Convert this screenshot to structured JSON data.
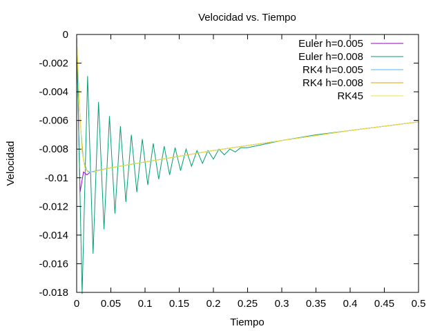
{
  "chart_data": {
    "type": "line",
    "title": "Velocidad vs. Tiempo",
    "xlabel": "Tiempo",
    "ylabel": "Velocidad",
    "xlim": [
      0,
      0.5
    ],
    "ylim": [
      -0.018,
      0
    ],
    "xticks": [
      0,
      0.05,
      0.1,
      0.15,
      0.2,
      0.25,
      0.3,
      0.35,
      0.4,
      0.45,
      0.5
    ],
    "xtick_labels": [
      "0",
      "0.05",
      "0.1",
      "0.15",
      "0.2",
      "0.25",
      "0.3",
      "0.35",
      "0.4",
      "0.45",
      "0.5"
    ],
    "yticks": [
      0,
      -0.002,
      -0.004,
      -0.006,
      -0.008,
      -0.01,
      -0.012,
      -0.014,
      -0.016,
      -0.018
    ],
    "ytick_labels": [
      "0",
      "-0.002",
      "-0.004",
      "-0.006",
      "-0.008",
      "-0.01",
      "-0.012",
      "-0.014",
      "-0.016",
      "-0.018"
    ],
    "grid": false,
    "legend_position": "top-right",
    "series": [
      {
        "name": "Euler h=0.005",
        "color": "#9400d3",
        "x": [
          0,
          0.005,
          0.01,
          0.015,
          0.02,
          0.025,
          0.03,
          0.05,
          0.1,
          0.15,
          0.2,
          0.3,
          0.4,
          0.5
        ],
        "y": [
          -0.0002,
          -0.011,
          -0.0096,
          -0.0098,
          -0.0096,
          -0.0096,
          -0.0095,
          -0.0093,
          -0.0089,
          -0.0085,
          -0.0081,
          -0.0074,
          -0.0067,
          -0.0061
        ]
      },
      {
        "name": "Euler h=0.008",
        "color": "#009e73",
        "x": [
          0,
          0.008,
          0.016,
          0.024,
          0.032,
          0.04,
          0.048,
          0.056,
          0.064,
          0.072,
          0.08,
          0.088,
          0.096,
          0.104,
          0.112,
          0.12,
          0.128,
          0.136,
          0.144,
          0.152,
          0.16,
          0.168,
          0.176,
          0.184,
          0.192,
          0.2,
          0.208,
          0.216,
          0.224,
          0.232,
          0.24,
          0.25,
          0.3,
          0.35,
          0.4,
          0.45,
          0.5
        ],
        "y": [
          -0.0002,
          -0.0181,
          -0.0029,
          -0.0153,
          -0.0047,
          -0.0136,
          -0.0057,
          -0.0125,
          -0.0064,
          -0.0117,
          -0.007,
          -0.011,
          -0.0073,
          -0.0105,
          -0.0076,
          -0.0101,
          -0.0078,
          -0.0098,
          -0.0079,
          -0.0095,
          -0.008,
          -0.0092,
          -0.0081,
          -0.009,
          -0.0081,
          -0.0087,
          -0.008,
          -0.0084,
          -0.008,
          -0.0082,
          -0.0079,
          -0.0079,
          -0.0074,
          -0.007,
          -0.0067,
          -0.0064,
          -0.0061
        ]
      },
      {
        "name": "RK4 h=0.005",
        "color": "#56b4e9",
        "x": [
          0,
          0.005,
          0.01,
          0.015,
          0.02,
          0.03,
          0.05,
          0.1,
          0.15,
          0.2,
          0.3,
          0.4,
          0.5
        ],
        "y": [
          -0.0002,
          -0.006,
          -0.0088,
          -0.0095,
          -0.0096,
          -0.0095,
          -0.0093,
          -0.0089,
          -0.0085,
          -0.0081,
          -0.0074,
          -0.0067,
          -0.0061
        ]
      },
      {
        "name": "RK4 h=0.008",
        "color": "#e69f00",
        "x": [
          0,
          0.004,
          0.008,
          0.012,
          0.016,
          0.024,
          0.032,
          0.05,
          0.1,
          0.15,
          0.2,
          0.3,
          0.4,
          0.5
        ],
        "y": [
          -0.0002,
          -0.005,
          -0.0082,
          -0.0093,
          -0.0096,
          -0.0096,
          -0.0095,
          -0.0093,
          -0.0089,
          -0.0085,
          -0.0081,
          -0.0074,
          -0.0067,
          -0.0061
        ]
      },
      {
        "name": "RK45",
        "color": "#f0e442",
        "x": [
          0,
          0.004,
          0.008,
          0.012,
          0.016,
          0.024,
          0.032,
          0.05,
          0.1,
          0.15,
          0.2,
          0.3,
          0.4,
          0.5
        ],
        "y": [
          -0.0002,
          -0.005,
          -0.0082,
          -0.0093,
          -0.0096,
          -0.0096,
          -0.0095,
          -0.0093,
          -0.0089,
          -0.0085,
          -0.0081,
          -0.0074,
          -0.0067,
          -0.0061
        ]
      }
    ]
  }
}
